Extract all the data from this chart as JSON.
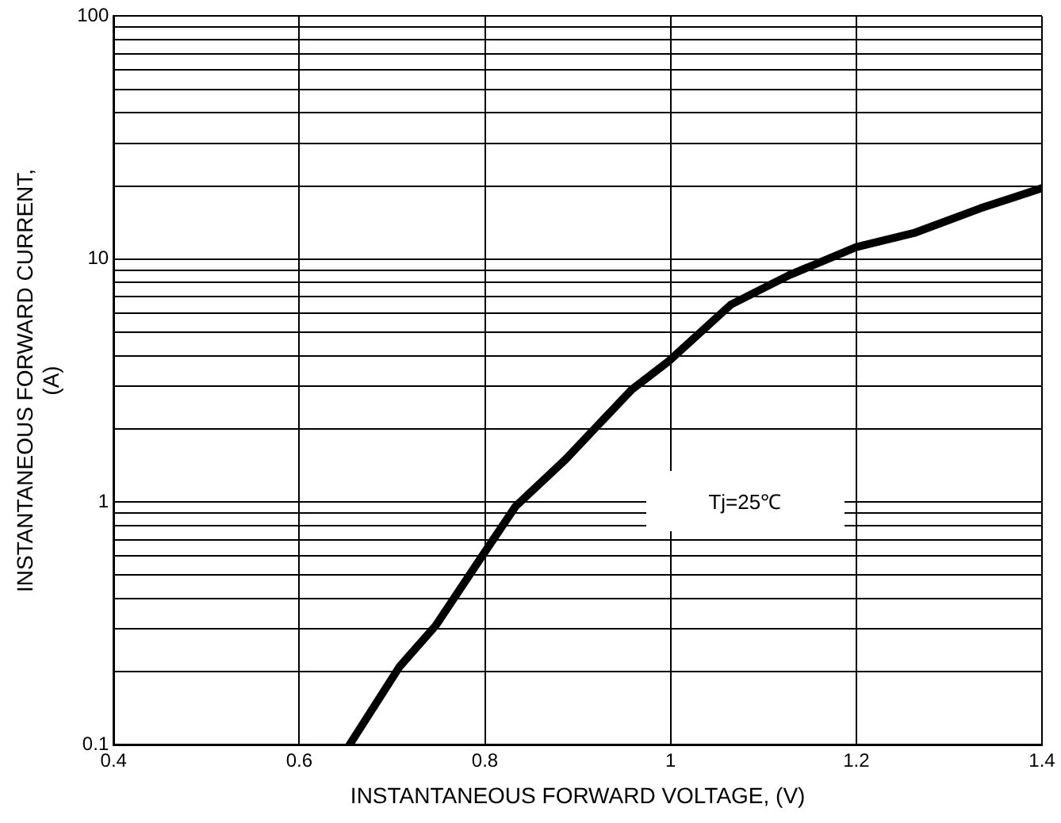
{
  "chart_data": {
    "type": "line",
    "xlabel": "INSTANTANEOUS FORWARD VOLTAGE, (V)",
    "ylabel": "INSTANTANEOUS FORWARD CURRENT,\n(A)",
    "log": "y",
    "grid": true,
    "marker": "none",
    "line_style": "solid",
    "legend": false,
    "xlim": [
      0.4,
      1.4
    ],
    "xticks": [
      0.4,
      0.6,
      0.8,
      1,
      1.2,
      1.4
    ],
    "ylim": [
      0.1,
      100
    ],
    "yticks": [
      0.1,
      {
        "value": 0.2,
        "label": null
      },
      {
        "value": 0.3,
        "label": null
      },
      {
        "value": 0.4,
        "label": null
      },
      {
        "value": 0.5,
        "label": null
      },
      {
        "value": 0.6,
        "label": null
      },
      {
        "value": 0.7,
        "label": null
      },
      {
        "value": 0.8,
        "label": null
      },
      {
        "value": 0.9,
        "label": null
      },
      1,
      {
        "value": 2,
        "label": null
      },
      {
        "value": 3,
        "label": null
      },
      {
        "value": 4,
        "label": null
      },
      {
        "value": 5,
        "label": null
      },
      {
        "value": 6,
        "label": null
      },
      {
        "value": 7,
        "label": null
      },
      {
        "value": 8,
        "label": null
      },
      {
        "value": 9,
        "label": null
      },
      10,
      {
        "value": 20,
        "label": null
      },
      {
        "value": 30,
        "label": null
      },
      {
        "value": 40,
        "label": null
      },
      {
        "value": 50,
        "label": null
      },
      {
        "value": 60,
        "label": null
      },
      {
        "value": 70,
        "label": null
      },
      {
        "value": 80,
        "label": null
      },
      {
        "value": 90,
        "label": null
      },
      100
    ],
    "annotations": [
      "Tj=25℃"
    ],
    "series": [
      {
        "color": "#000000",
        "x": [
          0.654,
          0.708,
          0.747,
          0.797,
          0.833,
          0.887,
          0.958,
          0.998,
          1.065,
          1.128,
          1.2,
          1.262,
          1.334,
          1.4
        ],
        "values": [
          0.1,
          0.21,
          0.31,
          0.6,
          0.96,
          1.5,
          2.9,
          3.8,
          6.5,
          8.6,
          11.2,
          12.8,
          16.2,
          19.6
        ]
      }
    ]
  }
}
